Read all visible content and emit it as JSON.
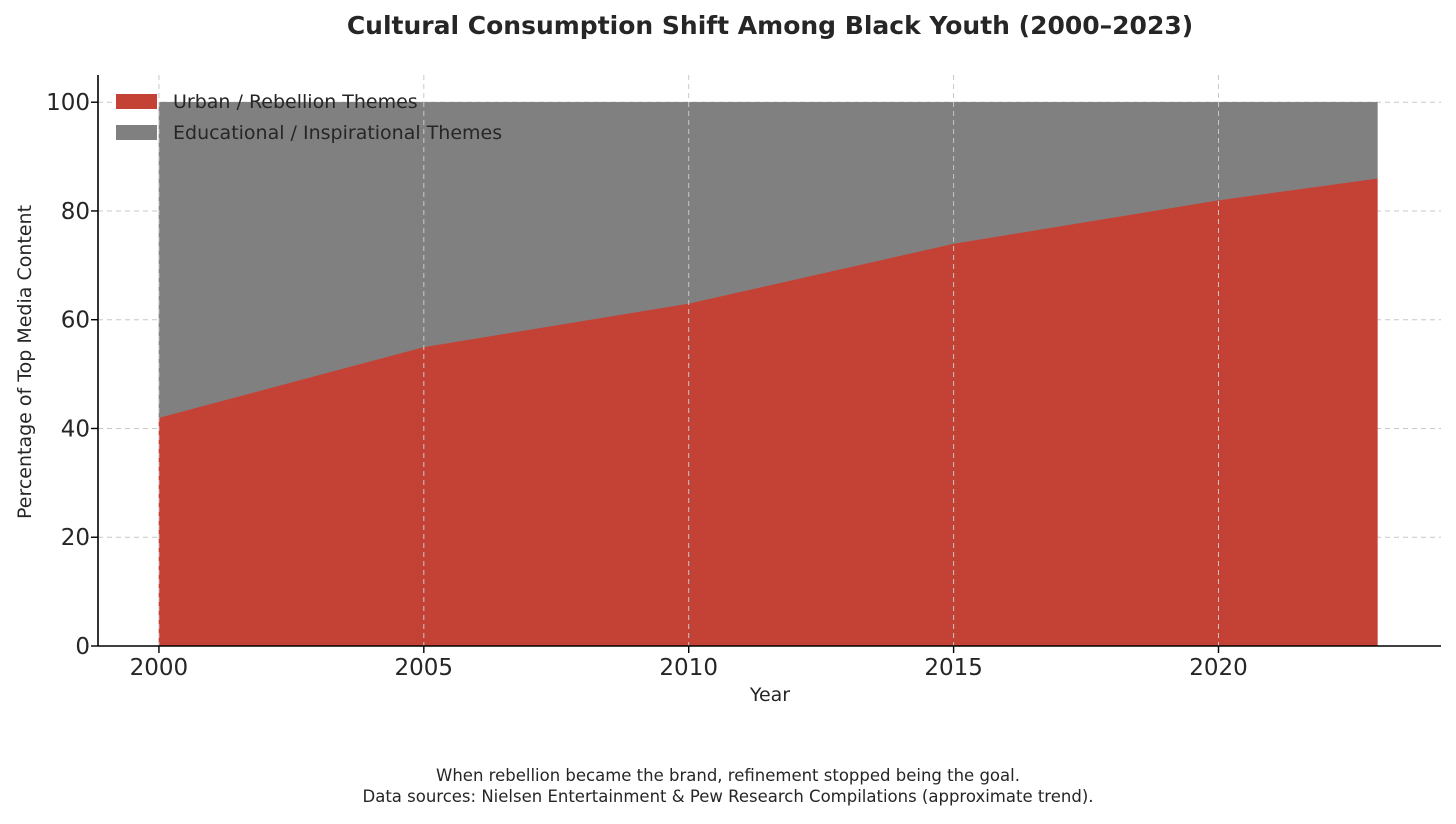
{
  "chart_data": {
    "type": "area",
    "stacked": true,
    "title": "Cultural Consumption Shift Among Black Youth (2000–2023)",
    "xlabel": "Year",
    "ylabel": "Percentage of Top Media Content",
    "x": [
      2000,
      2005,
      2010,
      2015,
      2020,
      2023
    ],
    "series": [
      {
        "name": "Urban / Rebellion Themes",
        "color": "#c44135",
        "values": [
          42,
          55,
          63,
          74,
          82,
          86
        ]
      },
      {
        "name": "Educational / Inspirational Themes",
        "color": "#808080",
        "values": [
          58,
          45,
          37,
          26,
          18,
          14
        ]
      }
    ],
    "xlim": [
      1998.85,
      2024.2
    ],
    "ylim": [
      0,
      105
    ],
    "xticks": [
      2000,
      2005,
      2010,
      2015,
      2020
    ],
    "yticks": [
      0,
      20,
      40,
      60,
      80,
      100
    ],
    "grid": true,
    "legend_position": "top-left"
  },
  "caption": {
    "line1": "When rebellion became the brand, refinement stopped being the goal.",
    "line2": "Data sources: Nielsen Entertainment & Pew Research Compilations (approximate trend)."
  }
}
